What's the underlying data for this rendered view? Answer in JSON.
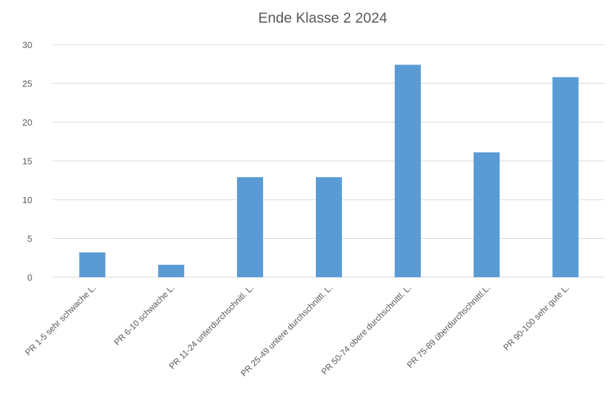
{
  "chart_data": {
    "type": "bar",
    "title": "Ende Klasse 2 2024",
    "xlabel": "",
    "ylabel": "",
    "ylim": [
      0,
      30
    ],
    "yticks": [
      0,
      5,
      10,
      15,
      20,
      25,
      30
    ],
    "grid": true,
    "legend": "none",
    "bar_color": "#5b9bd5",
    "categories": [
      "PR 1-5 sehr schwache L.",
      "PR 6-10 schwache L.",
      "PR 11-24 unterdurchschnitl. L.",
      "PR 25-49 untere durchschnittl. L.",
      "PR 50-74 obere durchschnittl. L.",
      "PR 75-89 überdurchschnittl.L.",
      "PR 90-100 sehr gute L."
    ],
    "values": [
      3.2,
      1.6,
      12.9,
      12.9,
      27.4,
      16.1,
      25.8
    ]
  }
}
